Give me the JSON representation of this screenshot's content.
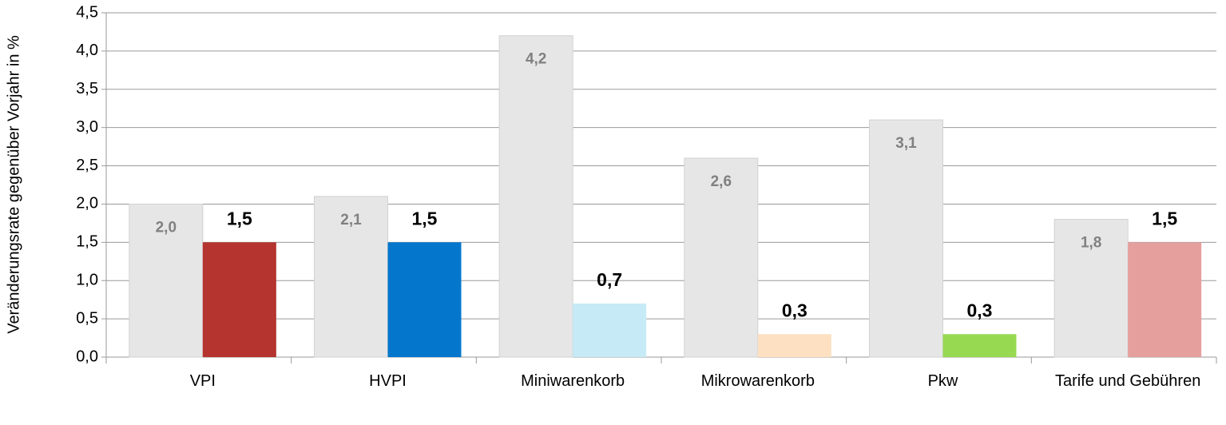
{
  "chart_data": {
    "type": "bar",
    "y_label": "Veränderungsrate gegenüber Vorjahr in %",
    "categories": [
      "VPI",
      "HVPI",
      "Miniwarenkorb",
      "Mikrowarenkorb",
      "Pkw",
      "Tarife und Gebühren"
    ],
    "series": [
      {
        "color": "#e6e6e6",
        "values": [
          2.0,
          2.1,
          4.2,
          2.6,
          3.1,
          1.8
        ],
        "value_labels": [
          "2,0",
          "2,1",
          "4,2",
          "2,6",
          "3,1",
          "1,8"
        ]
      },
      {
        "colors": [
          "#b5342f",
          "#0477cc",
          "#c6eaf6",
          "#fde0c2",
          "#98d952",
          "#e5a09e"
        ],
        "values": [
          1.5,
          1.5,
          0.7,
          0.3,
          0.3,
          1.5
        ],
        "value_labels": [
          "1,5",
          "1,5",
          "0,7",
          "0,3",
          "0,3",
          "1,5"
        ]
      }
    ],
    "ylim": [
      0,
      4.5
    ],
    "yticks": [
      {
        "value": 0,
        "label": "0,0"
      },
      {
        "value": 0.5,
        "label": "0,5"
      },
      {
        "value": 1,
        "label": "1,0"
      },
      {
        "value": 1.5,
        "label": "1,5"
      },
      {
        "value": 2,
        "label": "2,0"
      },
      {
        "value": 2.5,
        "label": "2,5"
      },
      {
        "value": 3,
        "label": "3,0"
      },
      {
        "value": 3.5,
        "label": "3,5"
      },
      {
        "value": 4,
        "label": "4,0"
      },
      {
        "value": 4.5,
        "label": "4,5"
      }
    ],
    "grid": true
  }
}
